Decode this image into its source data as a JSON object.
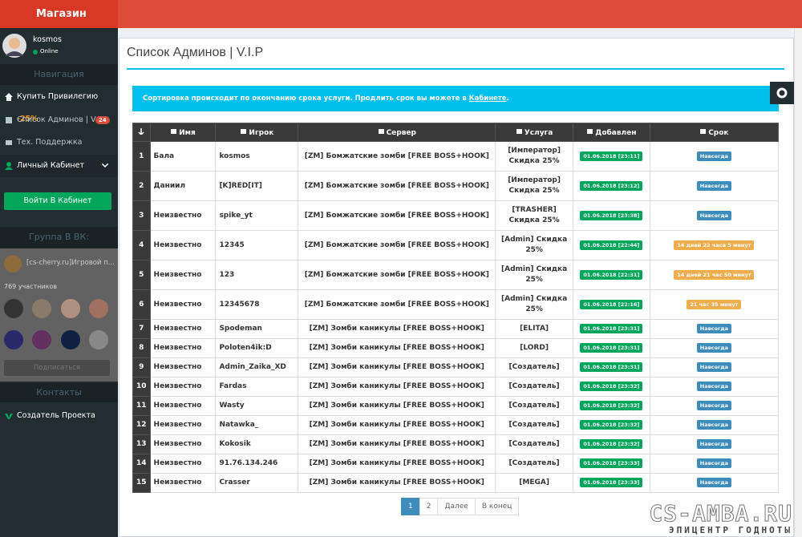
{
  "brand": "Магазин",
  "user": {
    "name": "kosmos",
    "status": "Online"
  },
  "sidebar": {
    "nav_heading": "Навигация",
    "nav": [
      {
        "label": "Купить Привилегию",
        "tag": "-25%"
      },
      {
        "label": "Список Админов | V.I.P",
        "badge": "24"
      },
      {
        "label": "Тех. Поддержка"
      },
      {
        "label": "Личный Кабинет"
      }
    ],
    "login_button": "Войти В Кабинет",
    "vk_heading": "Группа В ВК:",
    "vk_group": "[cs-cherry.ru]Игровой п...",
    "vk_members": "769 участников",
    "vk_subscribe": "Подписаться",
    "contacts_heading": "Контакты",
    "contacts": [
      "Создатель Проекта"
    ]
  },
  "header": {
    "title": "Список Админов | V.I.P"
  },
  "alert": {
    "text": "Сортировка происходит по окончанию срока услуги. Продлить срок вы можете в ",
    "link": "Кабинете",
    "end": "."
  },
  "table": {
    "columns": [
      "Имя",
      "Игрок",
      "Сервер",
      "Услуга",
      "Добавлен",
      "Срок"
    ],
    "rows": [
      {
        "num": 1,
        "name": "Бала",
        "player": "kosmos",
        "server": "[ZM] Бомжатские зомби [FREE BOSS+HOOK]",
        "service": "[Император] Скидка 25%",
        "added": "01.06.2018 [23:11]",
        "term": "Навсегда",
        "term_color": "#3c8dbc"
      },
      {
        "num": 2,
        "name": "Даниил",
        "player": "[K]RED[IT]",
        "server": "[ZM] Бомжатские зомби [FREE BOSS+HOOK]",
        "service": "[Император] Скидка 25%",
        "added": "01.06.2018 [23:12]",
        "term": "Навсегда",
        "term_color": "#3c8dbc"
      },
      {
        "num": 3,
        "name": "Неизвестно",
        "player": "spike_yt",
        "server": "[ZM] Бомжатские зомби [FREE BOSS+HOOK]",
        "service": "[TRASHER] Скидка 25%",
        "added": "01.06.2018 [23:38]",
        "term": "Навсегда",
        "term_color": "#3c8dbc"
      },
      {
        "num": 4,
        "name": "Неизвестно",
        "player": "12345",
        "server": "[ZM] Бомжатские зомби [FREE BOSS+HOOK]",
        "service": "[Admin] Скидка 25%",
        "added": "01.06.2018 [22:44]",
        "term": "14 дней 22 часа 5 минут",
        "term_color": "#f0ad4e"
      },
      {
        "num": 5,
        "name": "Неизвестно",
        "player": "123",
        "server": "[ZM] Бомжатские зомби [FREE BOSS+HOOK]",
        "service": "[Admin] Скидка 25%",
        "added": "01.06.2018 [22:31]",
        "term": "14 дней 21 час 50 минут",
        "term_color": "#f0ad4e"
      },
      {
        "num": 6,
        "name": "Неизвестно",
        "player": "12345678",
        "server": "[ZM] Бомжатские зомби [FREE BOSS+HOOK]",
        "service": "[Admin] Скидка 25%",
        "added": "01.06.2018 [22:16]",
        "term": "21 час 35 минут",
        "term_color": "#f0ad4e"
      },
      {
        "num": 7,
        "name": "Неизвестно",
        "player": "Spodeman",
        "server": "[ZM] Зомби каникулы [FREE BOSS+HOOK]",
        "service": "[ELITA]",
        "added": "01.06.2018 [23:31]",
        "term": "Навсегда",
        "term_color": "#3c8dbc"
      },
      {
        "num": 8,
        "name": "Неизвестно",
        "player": "Poloten4ik:D",
        "server": "[ZM] Зомби каникулы [FREE BOSS+HOOK]",
        "service": "[LORD]",
        "added": "01.06.2018 [23:31]",
        "term": "Навсегда",
        "term_color": "#3c8dbc"
      },
      {
        "num": 9,
        "name": "Неизвестно",
        "player": "Admin_Zaika_XD",
        "server": "[ZM] Зомби каникулы [FREE BOSS+HOOK]",
        "service": "[Создатель]",
        "added": "01.06.2018 [23:31]",
        "term": "Навсегда",
        "term_color": "#3c8dbc"
      },
      {
        "num": 10,
        "name": "Неизвестно",
        "player": "Fardas",
        "server": "[ZM] Зомби каникулы [FREE BOSS+HOOK]",
        "service": "[Создатель]",
        "added": "01.06.2018 [23:32]",
        "term": "Навсегда",
        "term_color": "#3c8dbc"
      },
      {
        "num": 11,
        "name": "Неизвестно",
        "player": "Wasty",
        "server": "[ZM] Зомби каникулы [FREE BOSS+HOOK]",
        "service": "[Создатель]",
        "added": "01.06.2018 [23:32]",
        "term": "Навсегда",
        "term_color": "#3c8dbc"
      },
      {
        "num": 12,
        "name": "Неизвестно",
        "player": "Natawka_",
        "server": "[ZM] Зомби каникулы [FREE BOSS+HOOK]",
        "service": "[Создатель]",
        "added": "01.06.2018 [23:32]",
        "term": "Навсегда",
        "term_color": "#3c8dbc"
      },
      {
        "num": 13,
        "name": "Неизвестно",
        "player": "Kokosik",
        "server": "[ZM] Зомби каникулы [FREE BOSS+HOOK]",
        "service": "[Создатель]",
        "added": "01.06.2018 [23:32]",
        "term": "Навсегда",
        "term_color": "#3c8dbc"
      },
      {
        "num": 14,
        "name": "Неизвестно",
        "player": "91.76.134.246",
        "server": "[ZM] Зомби каникулы [FREE BOSS+HOOK]",
        "service": "[Создатель]",
        "added": "01.06.2018 [23:33]",
        "term": "Навсегда",
        "term_color": "#3c8dbc"
      },
      {
        "num": 15,
        "name": "Неизвестно",
        "player": "Crasser",
        "server": "[ZM] Зомби каникулы [FREE BOSS+HOOK]",
        "service": "[MEGA]",
        "added": "01.06.2018 [23:33]",
        "term": "Навсегда",
        "term_color": "#3c8dbc"
      }
    ]
  },
  "pagination": [
    "1",
    "2",
    "Далее",
    "В конец"
  ],
  "watermark": {
    "title": "CS-AMBA.RU",
    "subtitle": "ЭПИЦЕНТР ГОДНОТЫ"
  }
}
